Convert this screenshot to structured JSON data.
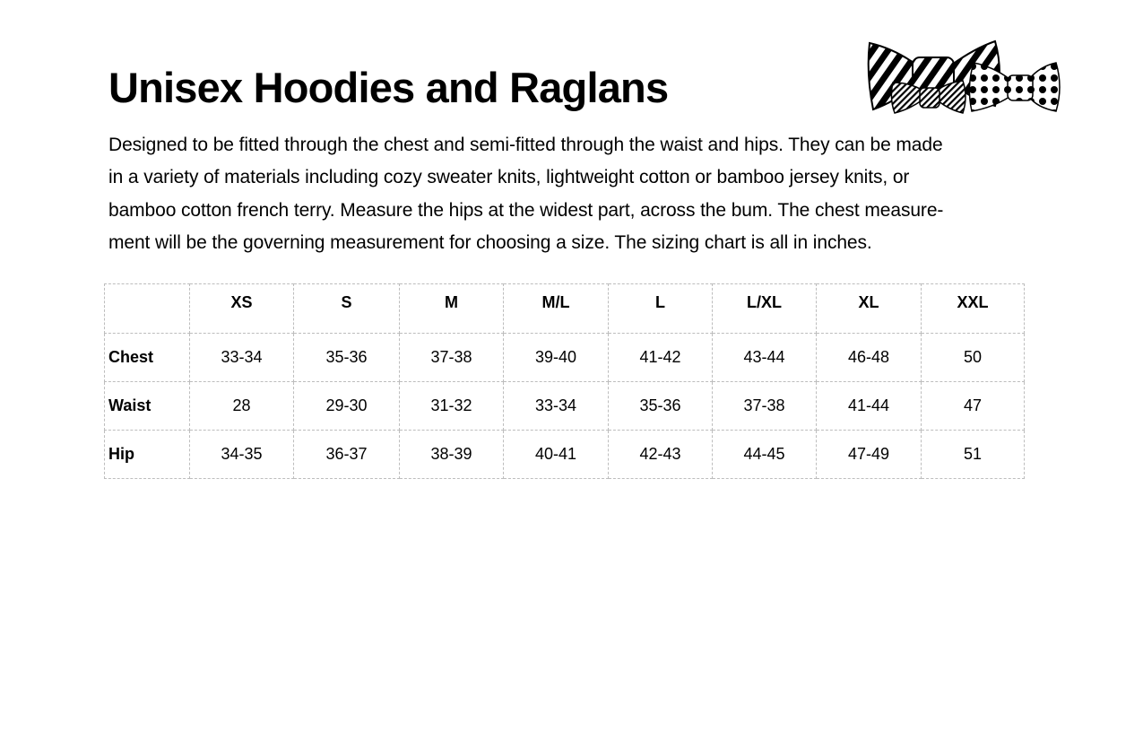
{
  "title": "Unisex Hoodies and Raglans",
  "description_lines": [
    "Designed to be fitted through the chest and semi-fitted through the waist and hips. They can be made",
    "in a variety of materials including cozy sweater knits, lightweight cotton or bamboo jersey knits, or",
    "bamboo cotton french terry. Measure the hips at the widest part, across the bum. The chest measure-",
    "ment will be the governing measurement for choosing a size. The sizing chart is all in inches."
  ],
  "logo": "bow-ties-illustration",
  "table": {
    "sizes": [
      "XS",
      "S",
      "M",
      "M/L",
      "L",
      "L/XL",
      "XL",
      "XXL"
    ],
    "rows": [
      {
        "label": "Chest",
        "values": [
          "33-34",
          "35-36",
          "37-38",
          "39-40",
          "41-42",
          "43-44",
          "46-48",
          "50"
        ]
      },
      {
        "label": "Waist",
        "values": [
          "28",
          "29-30",
          "31-32",
          "33-34",
          "35-36",
          "37-38",
          "41-44",
          "47"
        ]
      },
      {
        "label": "Hip",
        "values": [
          "34-35",
          "36-37",
          "38-39",
          "40-41",
          "42-43",
          "44-45",
          "47-49",
          "51"
        ]
      }
    ]
  }
}
